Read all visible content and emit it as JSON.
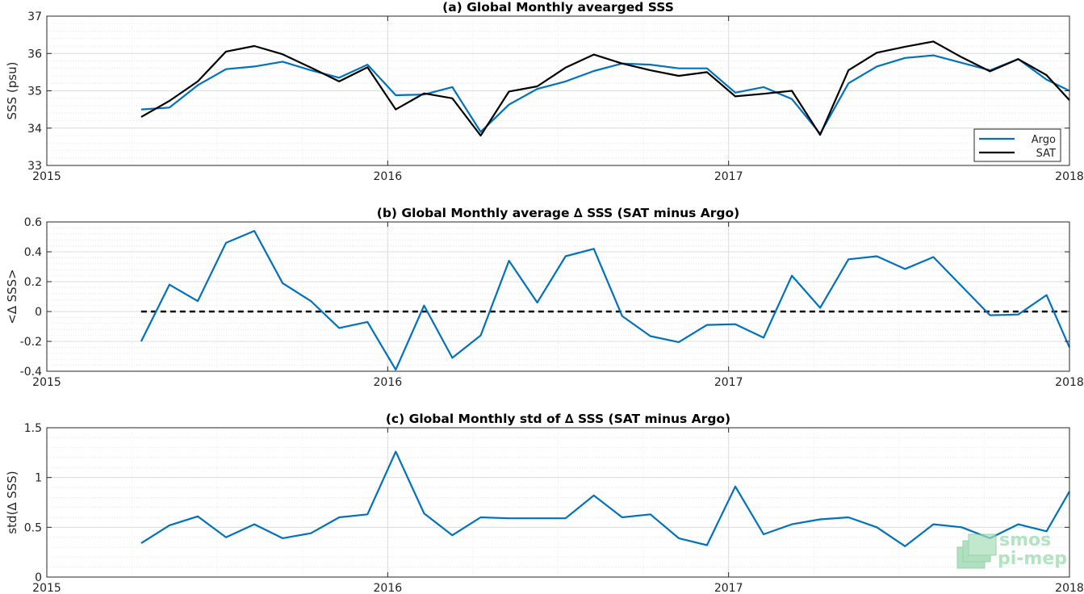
{
  "colors": {
    "argo": "#0072BD",
    "sat": "#000000",
    "grid": "#dcdcdc"
  },
  "logo": {
    "line1": "smos",
    "line2": "pi-mep"
  },
  "chart_data": [
    {
      "type": "line",
      "title": "(a) Global Monthly avearged SSS",
      "ylabel": "SSS (psu)",
      "xlabel": "",
      "xlim": [
        2015.0,
        2018.0
      ],
      "ylim": [
        33,
        37
      ],
      "xticks": [
        2015,
        2016,
        2017,
        2018
      ],
      "xticklabels": [
        "2015",
        "2016",
        "2017",
        "2018"
      ],
      "yticks": [
        33,
        34,
        35,
        36,
        37
      ],
      "yticklabels": [
        "33",
        "34",
        "35",
        "36",
        "37"
      ],
      "grid": true,
      "legend": "bottom-right",
      "x": [
        2015.2767,
        2015.3597,
        2015.4427,
        2015.5257,
        2015.6087,
        2015.6917,
        2015.7747,
        2015.8577,
        2015.9407,
        2016.0237,
        2016.1067,
        2016.1897,
        2016.2727,
        2016.3557,
        2016.4387,
        2016.5217,
        2016.6047,
        2016.6877,
        2016.7707,
        2016.8537,
        2016.9367,
        2017.0197,
        2017.1027,
        2017.1857,
        2017.2687,
        2017.3517,
        2017.4347,
        2017.5177,
        2017.6007,
        2017.6837,
        2017.7667,
        2017.8497,
        2017.9327,
        2018.0
      ],
      "series": [
        {
          "name": "Argo",
          "values": [
            34.5,
            34.55,
            35.15,
            35.58,
            35.65,
            35.78,
            35.55,
            35.35,
            35.7,
            34.88,
            34.9,
            35.1,
            33.9,
            34.63,
            35.05,
            35.25,
            35.53,
            35.73,
            35.7,
            35.6,
            35.6,
            34.95,
            35.1,
            34.78,
            33.85,
            35.2,
            35.65,
            35.88,
            35.95,
            35.75,
            35.55,
            35.85,
            35.3,
            35.0
          ]
        },
        {
          "name": "SAT",
          "values": [
            34.3,
            34.73,
            35.25,
            36.05,
            36.2,
            35.98,
            35.62,
            35.25,
            35.63,
            34.5,
            34.93,
            34.8,
            33.8,
            34.98,
            35.12,
            35.62,
            35.97,
            35.73,
            35.55,
            35.4,
            35.5,
            34.85,
            34.92,
            35.0,
            33.82,
            35.55,
            36.02,
            36.18,
            36.32,
            35.9,
            35.52,
            35.85,
            35.42,
            34.75
          ]
        }
      ]
    },
    {
      "type": "line",
      "title": "(b) Global Monthly average ∆ SSS (SAT minus Argo)",
      "ylabel": "<∆ SSS>",
      "xlabel": "",
      "xlim": [
        2015.0,
        2018.0
      ],
      "ylim": [
        -0.4,
        0.6
      ],
      "xticks": [
        2015,
        2016,
        2017,
        2018
      ],
      "xticklabels": [
        "2015",
        "2016",
        "2017",
        "2018"
      ],
      "yticks": [
        -0.4,
        -0.2,
        0,
        0.2,
        0.4,
        0.6
      ],
      "yticklabels": [
        "-0.4",
        "-0.2",
        "0",
        "0.2",
        "0.4",
        "0.6"
      ],
      "grid": true,
      "reference_line": {
        "y": 0,
        "x_start": 2015.2767,
        "x_end": 2018.0,
        "style": "dashed"
      },
      "x": [
        2015.2767,
        2015.3597,
        2015.4427,
        2015.5257,
        2015.6087,
        2015.6917,
        2015.7747,
        2015.8577,
        2015.9407,
        2016.0237,
        2016.1067,
        2016.1897,
        2016.2727,
        2016.3557,
        2016.4387,
        2016.5217,
        2016.6047,
        2016.6877,
        2016.7707,
        2016.8537,
        2016.9367,
        2017.0197,
        2017.1027,
        2017.1857,
        2017.2687,
        2017.3517,
        2017.4347,
        2017.5177,
        2017.6007,
        2017.6837,
        2017.7667,
        2017.8497,
        2017.9327,
        2018.0
      ],
      "series": [
        {
          "name": "",
          "values": [
            -0.2,
            0.18,
            0.07,
            0.46,
            0.54,
            0.19,
            0.07,
            -0.11,
            -0.07,
            -0.39,
            0.04,
            -0.31,
            -0.16,
            0.34,
            0.06,
            0.37,
            0.42,
            -0.03,
            -0.165,
            -0.205,
            -0.09,
            -0.085,
            -0.175,
            0.24,
            0.025,
            0.35,
            0.37,
            0.285,
            0.365,
            0.17,
            -0.025,
            -0.02,
            0.11,
            -0.24
          ]
        }
      ]
    },
    {
      "type": "line",
      "title": "(c) Global Monthly std of ∆ SSS (SAT minus Argo)",
      "ylabel": "std(∆ SSS)",
      "xlabel": "",
      "xlim": [
        2015.0,
        2018.0
      ],
      "ylim": [
        0,
        1.5
      ],
      "xticks": [
        2015,
        2016,
        2017,
        2018
      ],
      "xticklabels": [
        "2015",
        "2016",
        "2017",
        "2018"
      ],
      "yticks": [
        0,
        0.5,
        1,
        1.5
      ],
      "yticklabels": [
        "0",
        "0.5",
        "1",
        "1.5"
      ],
      "grid": true,
      "x": [
        2015.2767,
        2015.3597,
        2015.4427,
        2015.5257,
        2015.6087,
        2015.6917,
        2015.7747,
        2015.8577,
        2015.9407,
        2016.0237,
        2016.1067,
        2016.1897,
        2016.2727,
        2016.3557,
        2016.4387,
        2016.5217,
        2016.6047,
        2016.6877,
        2016.7707,
        2016.8537,
        2016.9367,
        2017.0197,
        2017.1027,
        2017.1857,
        2017.2687,
        2017.3517,
        2017.4347,
        2017.5177,
        2017.6007,
        2017.6837,
        2017.7667,
        2017.8497,
        2017.9327,
        2018.0
      ],
      "series": [
        {
          "name": "",
          "values": [
            0.34,
            0.52,
            0.61,
            0.4,
            0.53,
            0.39,
            0.44,
            0.6,
            0.63,
            1.26,
            0.64,
            0.42,
            0.6,
            0.59,
            0.59,
            0.59,
            0.82,
            0.6,
            0.63,
            0.39,
            0.32,
            0.91,
            0.43,
            0.53,
            0.58,
            0.6,
            0.5,
            0.31,
            0.53,
            0.5,
            0.39,
            0.53,
            0.46,
            0.86
          ]
        }
      ]
    }
  ]
}
